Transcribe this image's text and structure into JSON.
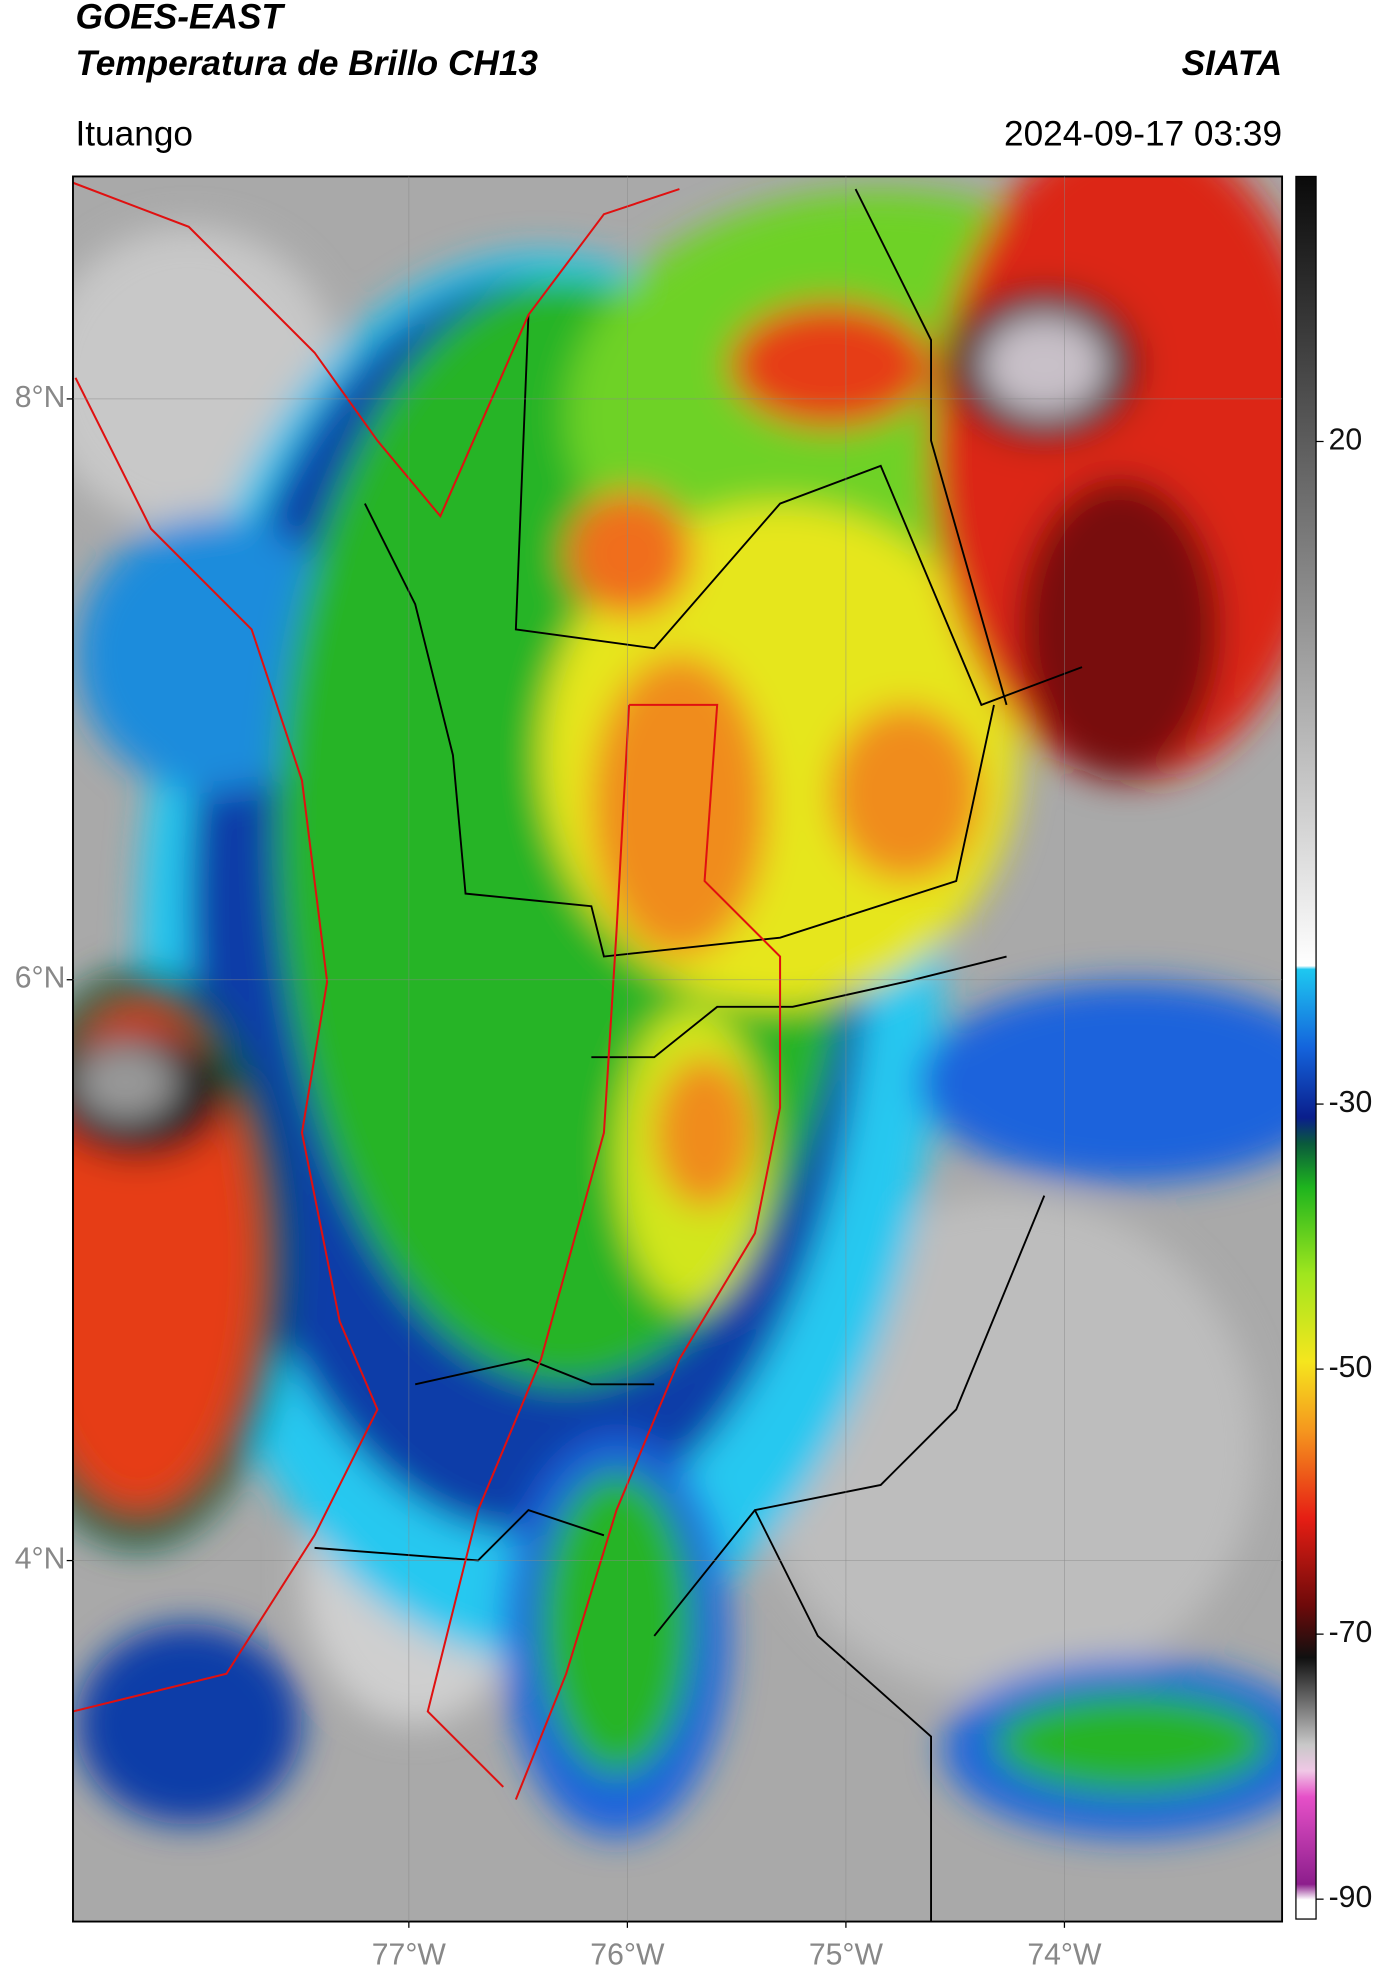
{
  "header": {
    "title": "GOES-EAST",
    "subtitle": "Temperatura de Brillo CH13",
    "source": "SIATA",
    "location": "Ituango",
    "datetime": "2024-09-17 03:39"
  },
  "map": {
    "lat_range": [
      2.757,
      8.766
    ],
    "lon_range": [
      -78.537,
      -73.004
    ],
    "lat_ticks": [
      {
        "value": 8,
        "label": "8°N"
      },
      {
        "value": 6,
        "label": "6°N"
      },
      {
        "value": 4,
        "label": "4°N"
      }
    ],
    "lon_ticks": [
      {
        "value": -77,
        "label": "77°W"
      },
      {
        "value": -76,
        "label": "76°W"
      },
      {
        "value": -75,
        "label": "75°W"
      },
      {
        "value": -74,
        "label": "74°W"
      }
    ],
    "grid": true
  },
  "colorbar": {
    "range": [
      -91.5,
      40
    ],
    "ticks": [
      20,
      -30,
      -50,
      -70,
      -90
    ]
  }
}
